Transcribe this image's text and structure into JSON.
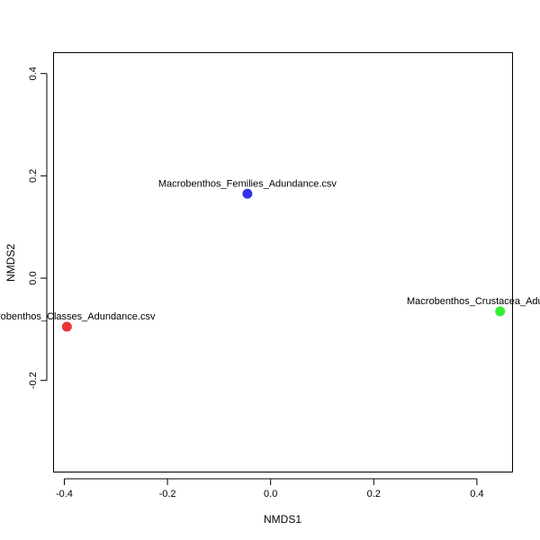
{
  "chart_data": {
    "type": "scatter",
    "title": "",
    "xlabel": "NMDS1",
    "ylabel": "NMDS2",
    "xlim": [
      -0.42,
      0.47
    ],
    "ylim": [
      -0.38,
      0.44
    ],
    "x_ticks": [
      -0.4,
      -0.2,
      0.0,
      0.2,
      0.4
    ],
    "x_tick_labels": [
      "-0.4",
      "-0.2",
      "0.0",
      "0.2",
      "0.4"
    ],
    "y_ticks": [
      -0.2,
      0.0,
      0.2,
      0.4
    ],
    "y_tick_labels": [
      "-0.2",
      "0.0",
      "0.2",
      "0.4"
    ],
    "grid": false,
    "points": [
      {
        "label": "Macrobenthos_Classes_Adundance.csv",
        "x": -0.395,
        "y": -0.095,
        "color": "#ee3333"
      },
      {
        "label": "Macrobenthos_Femilies_Adundance.csv",
        "x": -0.045,
        "y": 0.165,
        "color": "#3333ee"
      },
      {
        "label": "Macrobenthos_Crustacea_Adundance.csv",
        "x": 0.445,
        "y": -0.065,
        "color": "#33ee33"
      }
    ]
  }
}
